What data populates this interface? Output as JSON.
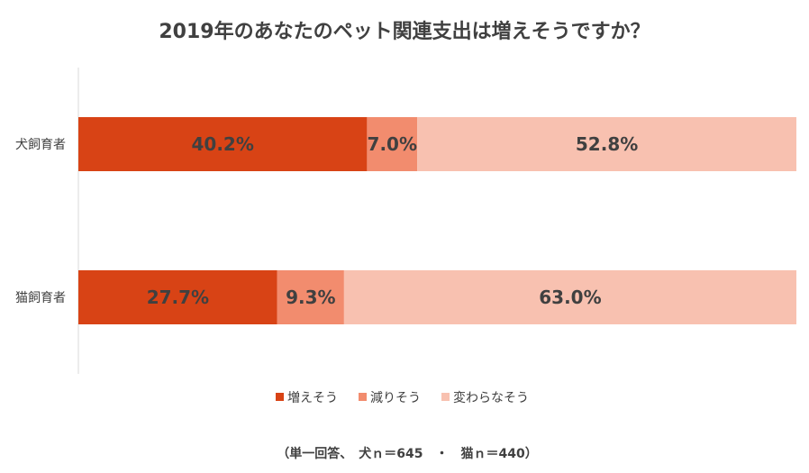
{
  "chart_data": {
    "type": "bar",
    "orientation": "horizontal",
    "stacked": "percent",
    "title": "2019年のあなたのペット関連支出は増えそうですか？",
    "categories": [
      "犬飼育者",
      "猫飼育者"
    ],
    "series": [
      {
        "name": "増えそう",
        "values": [
          40.2,
          27.7
        ],
        "labels": [
          "40.2%",
          "27.7%"
        ],
        "color": "#D84315"
      },
      {
        "name": "減りそう",
        "values": [
          7.0,
          9.3
        ],
        "labels": [
          "7.0%",
          "9.3%"
        ],
        "color": "#F28C6E"
      },
      {
        "name": "変わらなそう",
        "values": [
          52.8,
          63.0
        ],
        "labels": [
          "52.8%",
          "63.0%"
        ],
        "color": "#F8C1B0"
      }
    ],
    "xlim": [
      0,
      100
    ],
    "legend_position": "bottom",
    "grid": false,
    "note": "（単一回答、　犬ｎ＝645　・　猫ｎ＝440）"
  }
}
